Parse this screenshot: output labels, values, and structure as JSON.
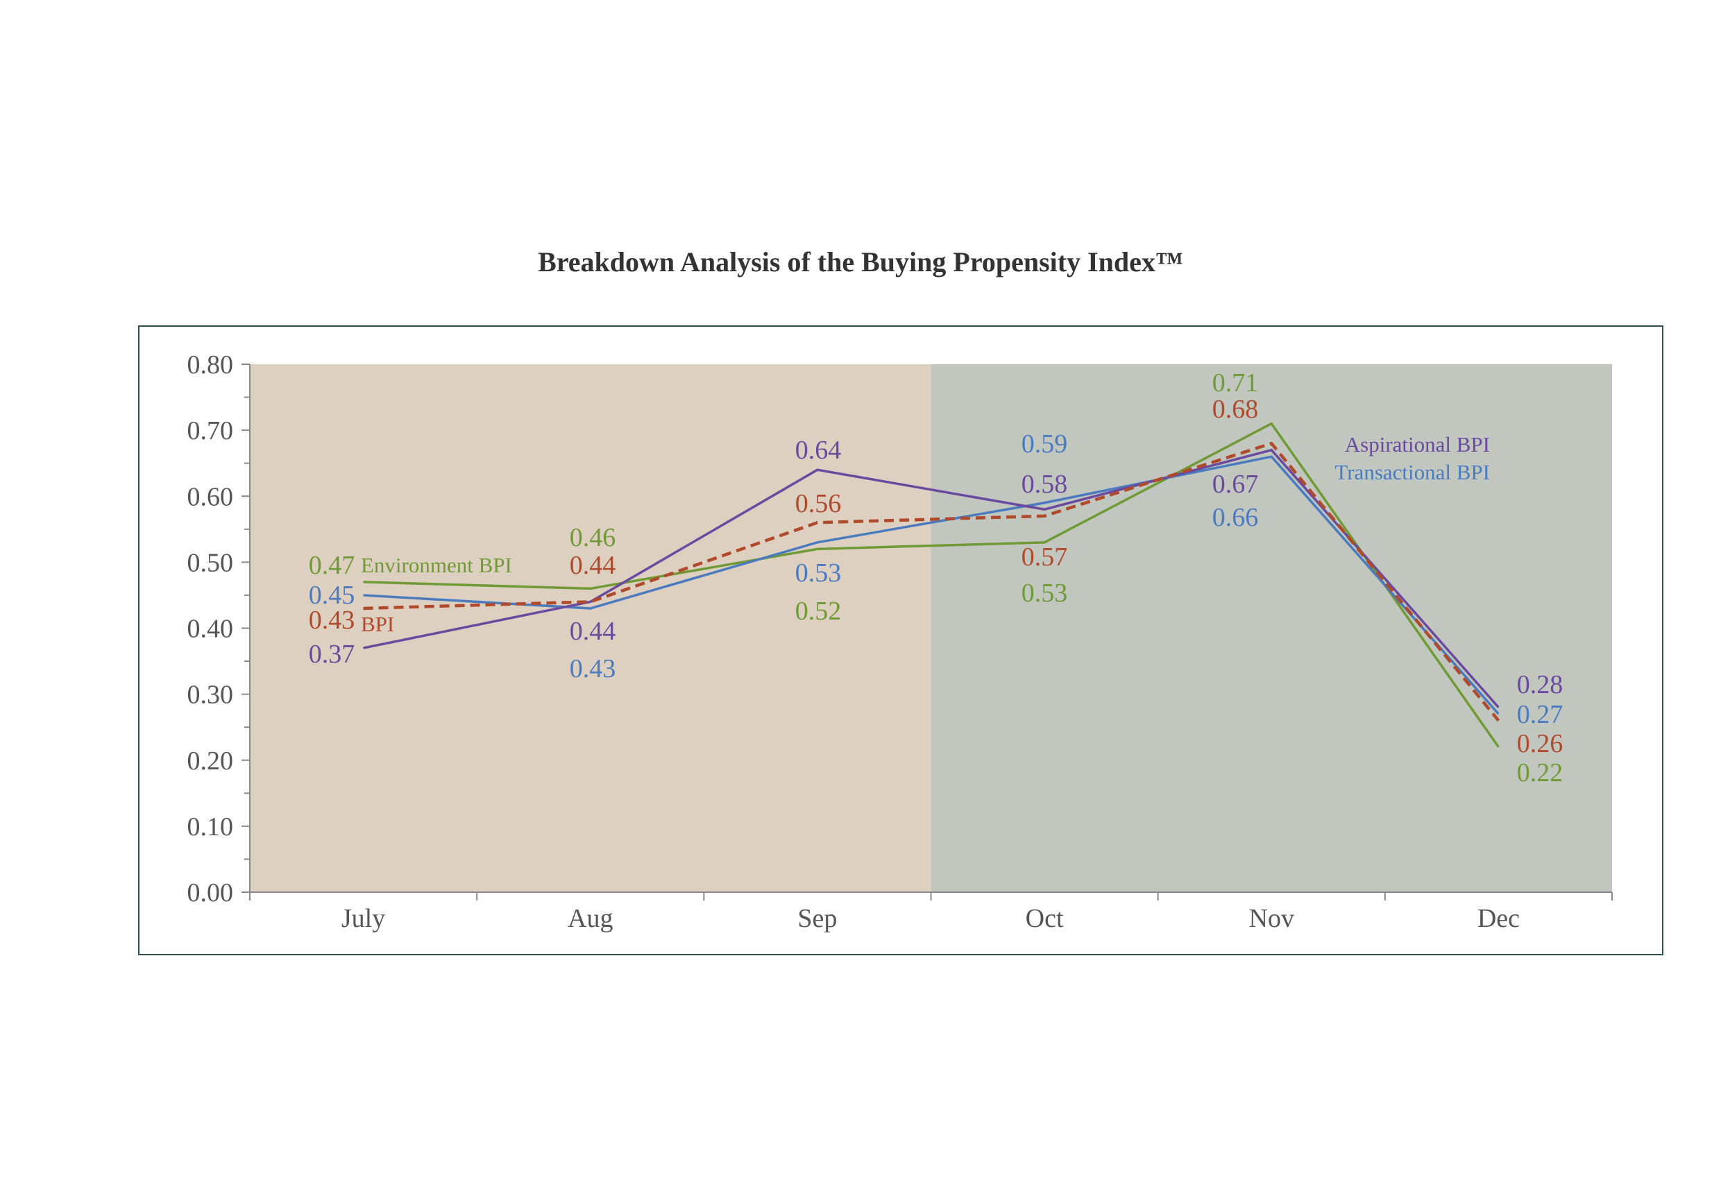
{
  "chart_data": {
    "type": "line",
    "title": "Breakdown Analysis of the Buying Propensity Index™",
    "categories": [
      "July",
      "Aug",
      "Sep",
      "Oct",
      "Nov",
      "Dec"
    ],
    "ylim": [
      0,
      0.8
    ],
    "y_ticks": [
      "0.00",
      "0.10",
      "0.20",
      "0.30",
      "0.40",
      "0.50",
      "0.60",
      "0.70",
      "0.80"
    ],
    "grid": false,
    "legend": "inline labels next to the lines",
    "shaded_regions": [
      {
        "from": "July",
        "to": "Sep",
        "color": "#ded0c0"
      },
      {
        "from": "Oct",
        "to": "Dec",
        "color": "#c1c7bf"
      }
    ],
    "series": [
      {
        "key": "env",
        "name": "Environment BPI",
        "color": "#6f9a35",
        "dashed": false,
        "values": [
          0.47,
          0.46,
          0.52,
          0.53,
          0.71,
          0.22
        ],
        "labels": [
          "0.47",
          "0.46",
          "0.52",
          "0.53",
          "0.71",
          "0.22"
        ]
      },
      {
        "key": "trans",
        "name": "Transactional BPI",
        "color": "#4a7bbf",
        "dashed": false,
        "values": [
          0.45,
          0.43,
          0.53,
          0.59,
          0.66,
          0.27
        ],
        "labels": [
          "0.45",
          "0.43",
          "0.53",
          "0.59",
          "0.66",
          "0.27"
        ]
      },
      {
        "key": "asp",
        "name": "Aspirational BPI",
        "color": "#6a4a9e",
        "dashed": false,
        "values": [
          0.37,
          0.44,
          0.64,
          0.58,
          0.67,
          0.28
        ],
        "labels": [
          "0.37",
          "0.44",
          "0.64",
          "0.58",
          "0.67",
          "0.28"
        ]
      },
      {
        "key": "bpi",
        "name": "BPI",
        "color": "#b04a2c",
        "dashed": true,
        "values": [
          0.43,
          0.44,
          0.56,
          0.57,
          0.68,
          0.26
        ],
        "labels": [
          "0.43",
          "0.44",
          "0.56",
          "0.57",
          "0.68",
          "0.26"
        ]
      }
    ]
  }
}
